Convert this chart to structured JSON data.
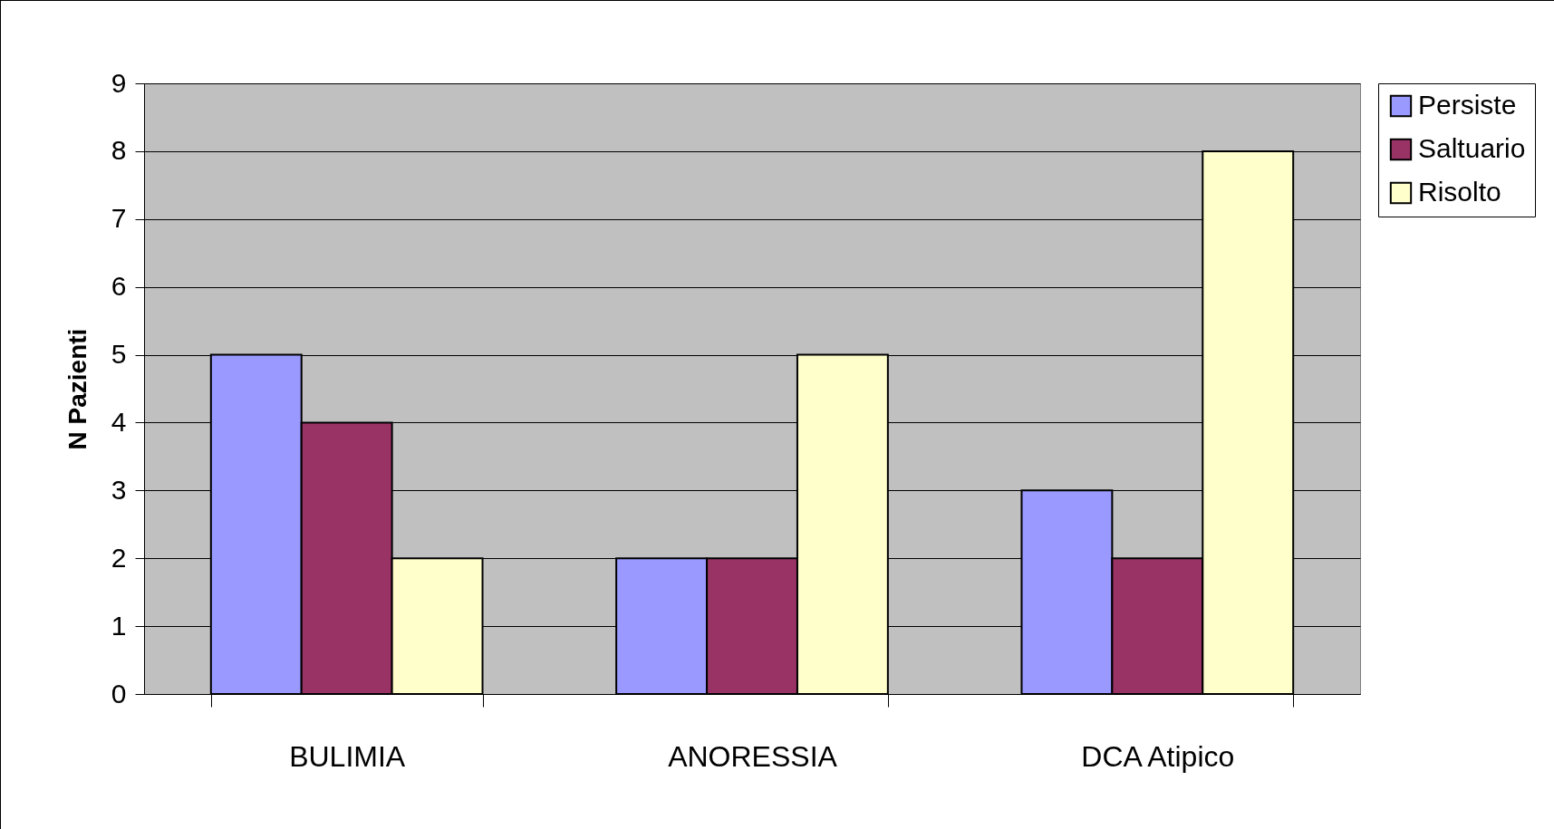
{
  "chart_data": {
    "type": "bar",
    "ylabel": "N Pazienti",
    "categories": [
      "BULIMIA",
      "ANORESSIA",
      "DCA Atipico"
    ],
    "series": [
      {
        "name": "Persiste",
        "color": "#9999ff",
        "values": [
          5,
          2,
          3
        ]
      },
      {
        "name": "Saltuario",
        "color": "#993366",
        "values": [
          4,
          2,
          2
        ]
      },
      {
        "name": "Risolto",
        "color": "#ffffcc",
        "values": [
          2,
          5,
          8
        ]
      }
    ],
    "ylim": [
      0,
      9
    ],
    "yticks": [
      0,
      1,
      2,
      3,
      4,
      5,
      6,
      7,
      8,
      9
    ],
    "grid": "y",
    "legend": "right"
  }
}
